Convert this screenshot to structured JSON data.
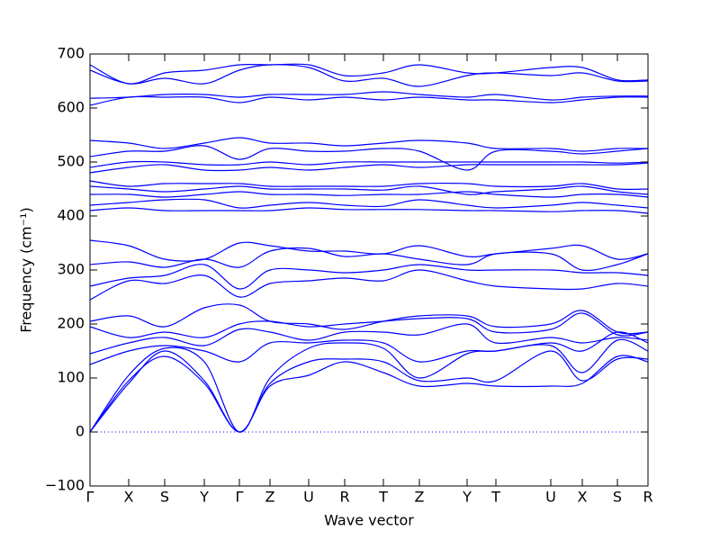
{
  "chart_data": {
    "type": "line",
    "xlabel": "Wave vector",
    "ylabel": "Frequency (cm⁻¹)",
    "color": "#0000ff",
    "x": [
      0,
      0.43,
      0.83,
      1.27,
      1.66,
      2.0,
      2.43,
      2.83,
      3.26,
      3.66,
      4.19,
      4.51,
      5.12,
      5.47,
      5.86,
      6.2
    ],
    "xlim": [
      0,
      6.2
    ],
    "xticks": [
      {
        "value": 0,
        "label": "Γ"
      },
      {
        "value": 0.43,
        "label": "X"
      },
      {
        "value": 0.83,
        "label": "S"
      },
      {
        "value": 1.27,
        "label": "Y"
      },
      {
        "value": 1.66,
        "label": "Γ"
      },
      {
        "value": 2.0,
        "label": "Z"
      },
      {
        "value": 2.43,
        "label": "U"
      },
      {
        "value": 2.83,
        "label": "R"
      },
      {
        "value": 3.26,
        "label": "T"
      },
      {
        "value": 3.66,
        "label": "Z"
      },
      {
        "value": 4.19,
        "label": "Y"
      },
      {
        "value": 4.51,
        "label": "T"
      },
      {
        "value": 5.12,
        "label": "U"
      },
      {
        "value": 5.47,
        "label": "X"
      },
      {
        "value": 5.86,
        "label": "S"
      },
      {
        "value": 6.2,
        "label": "R"
      }
    ],
    "ylim": [
      -100,
      700
    ],
    "yticks": [
      {
        "value": -100,
        "label": "−100"
      },
      0,
      100,
      200,
      300,
      400,
      500,
      600,
      700
    ],
    "hline": 0,
    "series": [
      {
        "values": [
          0,
          95,
          140,
          90,
          0,
          85,
          105,
          130,
          110,
          85,
          90,
          85,
          85,
          90,
          140,
          130
        ]
      },
      {
        "values": [
          0,
          90,
          150,
          95,
          0,
          90,
          130,
          135,
          130,
          95,
          100,
          95,
          150,
          95,
          135,
          135
        ]
      },
      {
        "values": [
          0,
          105,
          155,
          130,
          0,
          100,
          155,
          165,
          155,
          100,
          145,
          150,
          160,
          110,
          170,
          150
        ]
      },
      {
        "values": [
          125,
          150,
          160,
          150,
          130,
          165,
          165,
          170,
          165,
          130,
          150,
          150,
          165,
          150,
          185,
          165
        ]
      },
      {
        "values": [
          145,
          165,
          175,
          160,
          190,
          185,
          170,
          185,
          185,
          180,
          200,
          165,
          175,
          165,
          175,
          170
        ]
      },
      {
        "values": [
          195,
          175,
          185,
          175,
          200,
          205,
          195,
          200,
          205,
          210,
          210,
          185,
          190,
          220,
          180,
          185
        ]
      },
      {
        "values": [
          205,
          215,
          195,
          230,
          235,
          205,
          200,
          190,
          205,
          215,
          215,
          195,
          200,
          225,
          185,
          185
        ]
      },
      {
        "values": [
          245,
          280,
          275,
          290,
          250,
          275,
          280,
          285,
          280,
          300,
          280,
          270,
          265,
          265,
          275,
          270
        ]
      },
      {
        "values": [
          270,
          285,
          290,
          310,
          265,
          300,
          300,
          295,
          300,
          310,
          300,
          300,
          300,
          295,
          295,
          290
        ]
      },
      {
        "values": [
          310,
          315,
          305,
          320,
          305,
          335,
          340,
          325,
          330,
          320,
          310,
          330,
          330,
          300,
          310,
          330
        ]
      },
      {
        "values": [
          355,
          345,
          320,
          320,
          350,
          345,
          335,
          335,
          330,
          345,
          325,
          330,
          340,
          345,
          320,
          330
        ]
      },
      {
        "values": [
          410,
          415,
          410,
          410,
          410,
          410,
          415,
          412,
          412,
          412,
          410,
          410,
          408,
          410,
          410,
          405
        ]
      },
      {
        "values": [
          420,
          425,
          430,
          430,
          415,
          420,
          425,
          420,
          418,
          430,
          420,
          415,
          420,
          425,
          420,
          415
        ]
      },
      {
        "values": [
          440,
          440,
          435,
          440,
          445,
          440,
          440,
          438,
          440,
          440,
          445,
          440,
          435,
          440,
          440,
          435
        ]
      },
      {
        "values": [
          455,
          450,
          445,
          450,
          455,
          450,
          450,
          450,
          448,
          455,
          440,
          445,
          450,
          455,
          445,
          440
        ]
      },
      {
        "values": [
          465,
          455,
          460,
          460,
          460,
          455,
          455,
          455,
          455,
          460,
          460,
          455,
          455,
          460,
          450,
          450
        ]
      },
      {
        "values": [
          480,
          490,
          495,
          485,
          485,
          490,
          485,
          490,
          495,
          490,
          495,
          495,
          495,
          495,
          495,
          498
        ]
      },
      {
        "values": [
          490,
          500,
          500,
          495,
          495,
          500,
          495,
          500,
          500,
          500,
          500,
          500,
          500,
          500,
          498,
          500
        ]
      },
      {
        "values": [
          510,
          520,
          520,
          530,
          505,
          525,
          520,
          520,
          525,
          520,
          485,
          520,
          520,
          515,
          520,
          525
        ]
      },
      {
        "values": [
          540,
          535,
          525,
          535,
          545,
          535,
          535,
          530,
          535,
          540,
          535,
          525,
          525,
          520,
          525,
          525
        ]
      },
      {
        "values": [
          605,
          620,
          620,
          620,
          610,
          620,
          615,
          620,
          615,
          620,
          615,
          615,
          610,
          615,
          620,
          620
        ]
      },
      {
        "values": [
          618,
          620,
          625,
          625,
          620,
          625,
          625,
          625,
          630,
          625,
          620,
          625,
          615,
          620,
          622,
          622
        ]
      },
      {
        "values": [
          670,
          645,
          655,
          645,
          670,
          680,
          675,
          650,
          655,
          640,
          660,
          665,
          660,
          665,
          650,
          650
        ]
      },
      {
        "values": [
          680,
          645,
          665,
          670,
          680,
          680,
          680,
          660,
          665,
          680,
          665,
          665,
          675,
          675,
          652,
          652
        ]
      }
    ]
  }
}
